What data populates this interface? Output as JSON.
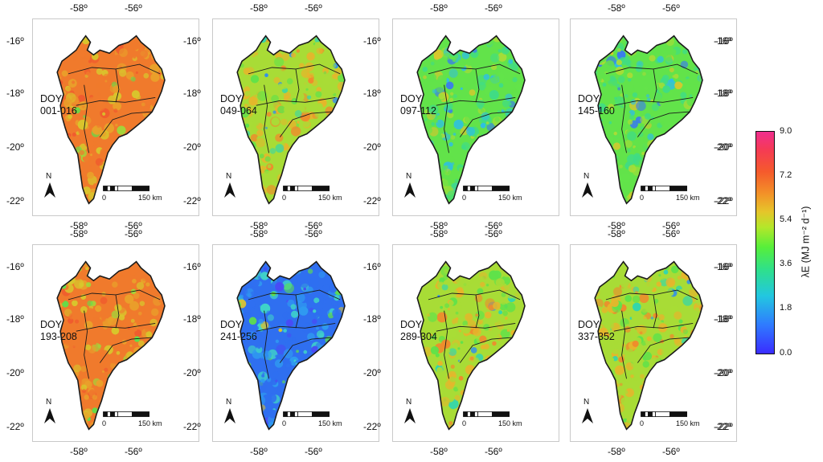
{
  "panels": [
    {
      "doy": "DOY",
      "range": "001-016",
      "tone": "orange"
    },
    {
      "doy": "DOY",
      "range": "049-064",
      "tone": "mixed"
    },
    {
      "doy": "DOY",
      "range": "097-112",
      "tone": "green"
    },
    {
      "doy": "DOY",
      "range": "145-160",
      "tone": "green"
    },
    {
      "doy": "DOY",
      "range": "193-208",
      "tone": "orange"
    },
    {
      "doy": "DOY",
      "range": "241-256",
      "tone": "blue"
    },
    {
      "doy": "DOY",
      "range": "289-304",
      "tone": "mixed"
    },
    {
      "doy": "DOY",
      "range": "337-352",
      "tone": "mixed"
    }
  ],
  "lon_labels": [
    "-58º",
    "-56º"
  ],
  "lat_labels": [
    "-16º",
    "-18º",
    "-20º",
    "-22º"
  ],
  "north_label": "N",
  "scale_bar": {
    "start": "0",
    "end": "150 km"
  },
  "legend": {
    "title": "λE (MJ m⁻² d⁻¹)",
    "ticks": [
      "9.0",
      "7.2",
      "5.4",
      "3.6",
      "1.8",
      "0.0"
    ],
    "min": 0.0,
    "max": 9.0,
    "colors": {
      "low": "#3a2cff",
      "mid": "#57ef3a",
      "high": "#f02e8e"
    }
  }
}
